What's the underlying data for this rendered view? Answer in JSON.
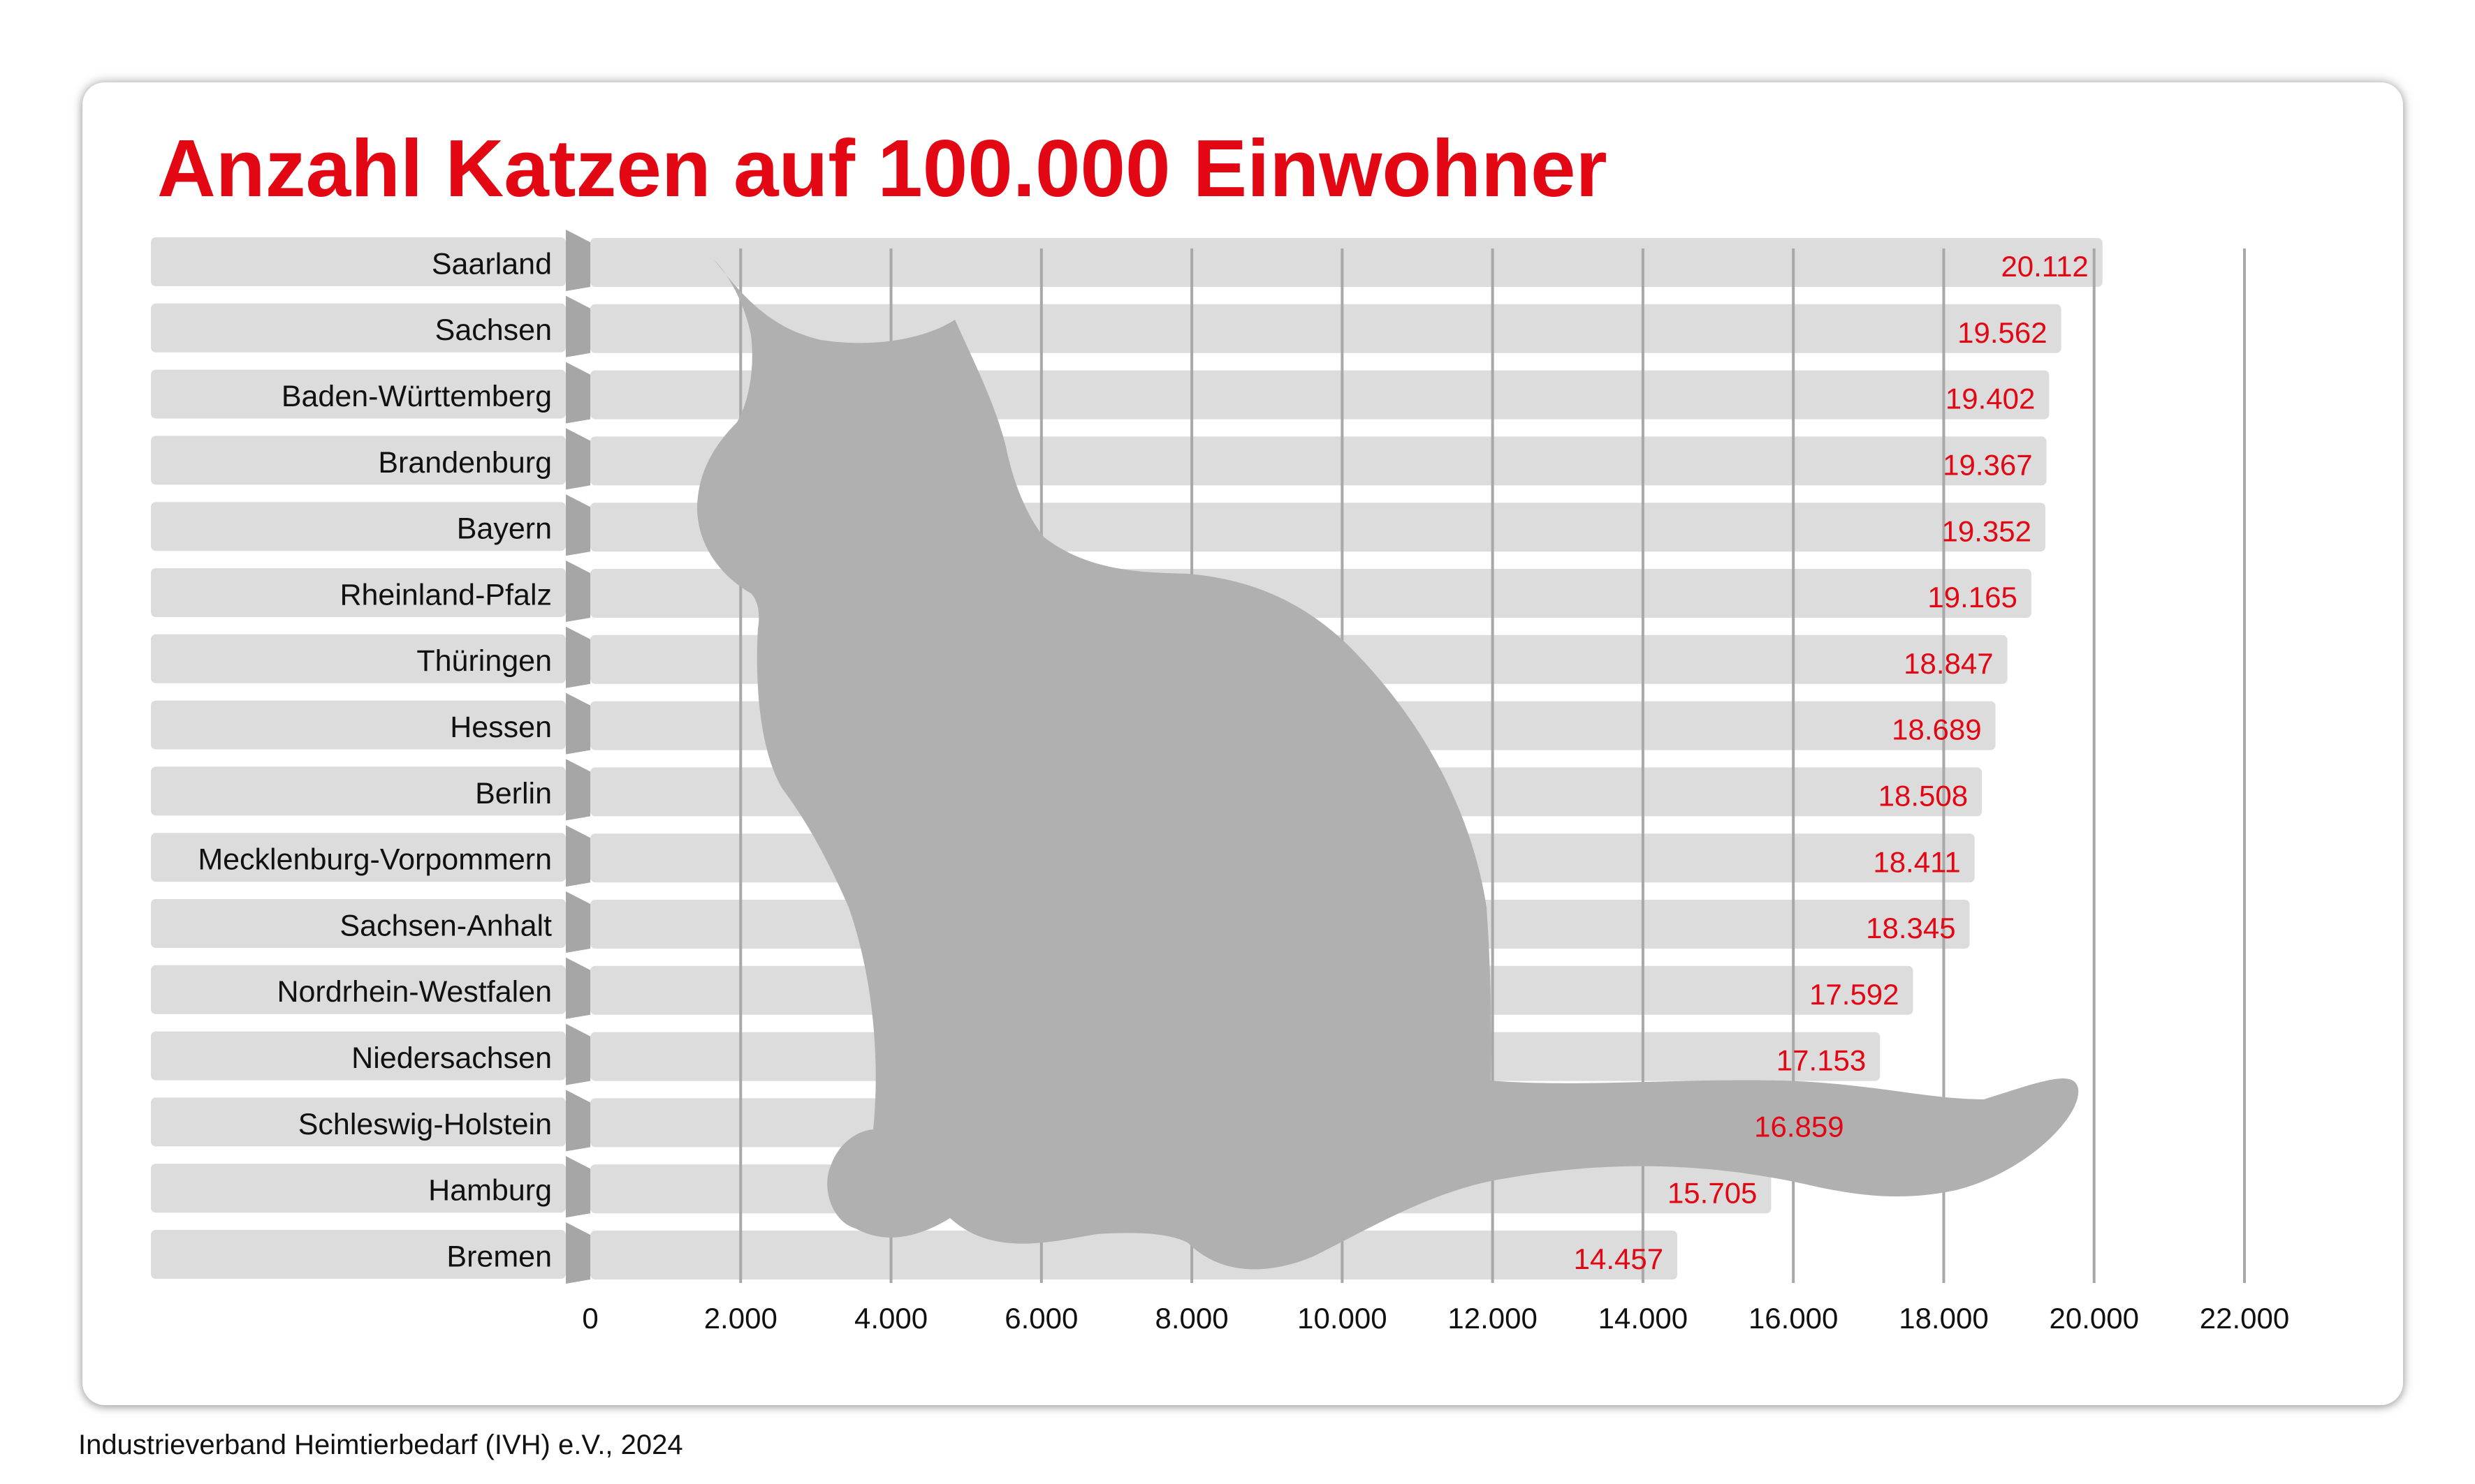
{
  "title": "Anzahl Katzen auf 100.000 Einwohner",
  "source": "Industrieverband Heimtierbedarf (IVH) e.V., 2024",
  "colors": {
    "title": "#e30613",
    "value_label": "#e30613",
    "bar": "#dcdcdc",
    "bar_side": "#a6a6a6",
    "label_tab": "#dcdcdc",
    "gridline": "#a8a8a8",
    "cat": "#b0b0b0",
    "text": "#111111"
  },
  "chart_data": {
    "type": "bar",
    "orientation": "horizontal",
    "title": "Anzahl Katzen auf 100.000 Einwohner",
    "xlabel": "",
    "ylabel": "",
    "xlim": [
      0,
      22000
    ],
    "grid": true,
    "categories": [
      "Saarland",
      "Sachsen",
      "Baden-Württemberg",
      "Brandenburg",
      "Bayern",
      "Rheinland-Pfalz",
      "Thüringen",
      "Hessen",
      "Berlin",
      "Mecklenburg-Vorpommern",
      "Sachsen-Anhalt",
      "Nordrhein-Westfalen",
      "Niedersachsen",
      "Schleswig-Holstein",
      "Hamburg",
      "Bremen"
    ],
    "values": [
      20112,
      19562,
      19402,
      19367,
      19352,
      19165,
      18847,
      18689,
      18508,
      18411,
      18345,
      17592,
      17153,
      16859,
      15705,
      14457
    ],
    "value_labels": [
      "20.112",
      "19.562",
      "19.402",
      "19.367",
      "19.352",
      "19.165",
      "18.847",
      "18.689",
      "18.508",
      "18.411",
      "18.345",
      "17.592",
      "17.153",
      "16.859",
      "15.705",
      "14.457"
    ],
    "ticks": [
      0,
      2000,
      4000,
      6000,
      8000,
      10000,
      12000,
      14000,
      16000,
      18000,
      20000,
      22000
    ],
    "tick_labels": [
      "0",
      "2.000",
      "4.000",
      "6.000",
      "8.000",
      "10.000",
      "12.000",
      "14.000",
      "16.000",
      "18.000",
      "20.000",
      "22.000"
    ],
    "decoration": "cat-silhouette"
  }
}
